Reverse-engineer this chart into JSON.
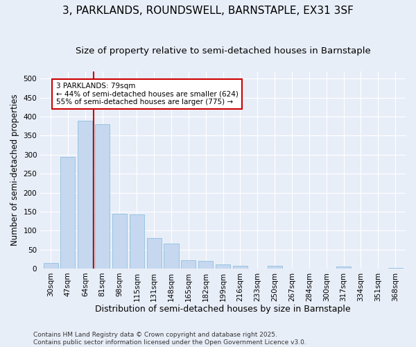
{
  "title": "3, PARKLANDS, ROUNDSWELL, BARNSTAPLE, EX31 3SF",
  "subtitle": "Size of property relative to semi-detached houses in Barnstaple",
  "xlabel": "Distribution of semi-detached houses by size in Barnstaple",
  "ylabel": "Number of semi-detached properties",
  "categories": [
    "30sqm",
    "47sqm",
    "64sqm",
    "81sqm",
    "98sqm",
    "115sqm",
    "131sqm",
    "148sqm",
    "165sqm",
    "182sqm",
    "199sqm",
    "216sqm",
    "233sqm",
    "250sqm",
    "267sqm",
    "284sqm",
    "300sqm",
    "317sqm",
    "334sqm",
    "351sqm",
    "368sqm"
  ],
  "values": [
    15,
    295,
    390,
    380,
    145,
    143,
    80,
    65,
    22,
    20,
    10,
    7,
    0,
    7,
    0,
    0,
    0,
    5,
    0,
    0,
    2
  ],
  "bar_color": "#c5d8f0",
  "bar_edge_color": "#7fb8d8",
  "vline_color": "#cc0000",
  "vline_x": 2.5,
  "annotation_text": "3 PARKLANDS: 79sqm\n← 44% of semi-detached houses are smaller (624)\n55% of semi-detached houses are larger (775) →",
  "annotation_box_facecolor": "#ffffff",
  "annotation_box_edgecolor": "#cc0000",
  "ylim": [
    0,
    520
  ],
  "yticks": [
    0,
    50,
    100,
    150,
    200,
    250,
    300,
    350,
    400,
    450,
    500
  ],
  "footnote": "Contains HM Land Registry data © Crown copyright and database right 2025.\nContains public sector information licensed under the Open Government Licence v3.0.",
  "bg_color": "#e8eef8",
  "title_fontsize": 11,
  "subtitle_fontsize": 9.5,
  "ylabel_fontsize": 8.5,
  "xlabel_fontsize": 9,
  "tick_fontsize": 7.5,
  "footnote_fontsize": 6.5
}
